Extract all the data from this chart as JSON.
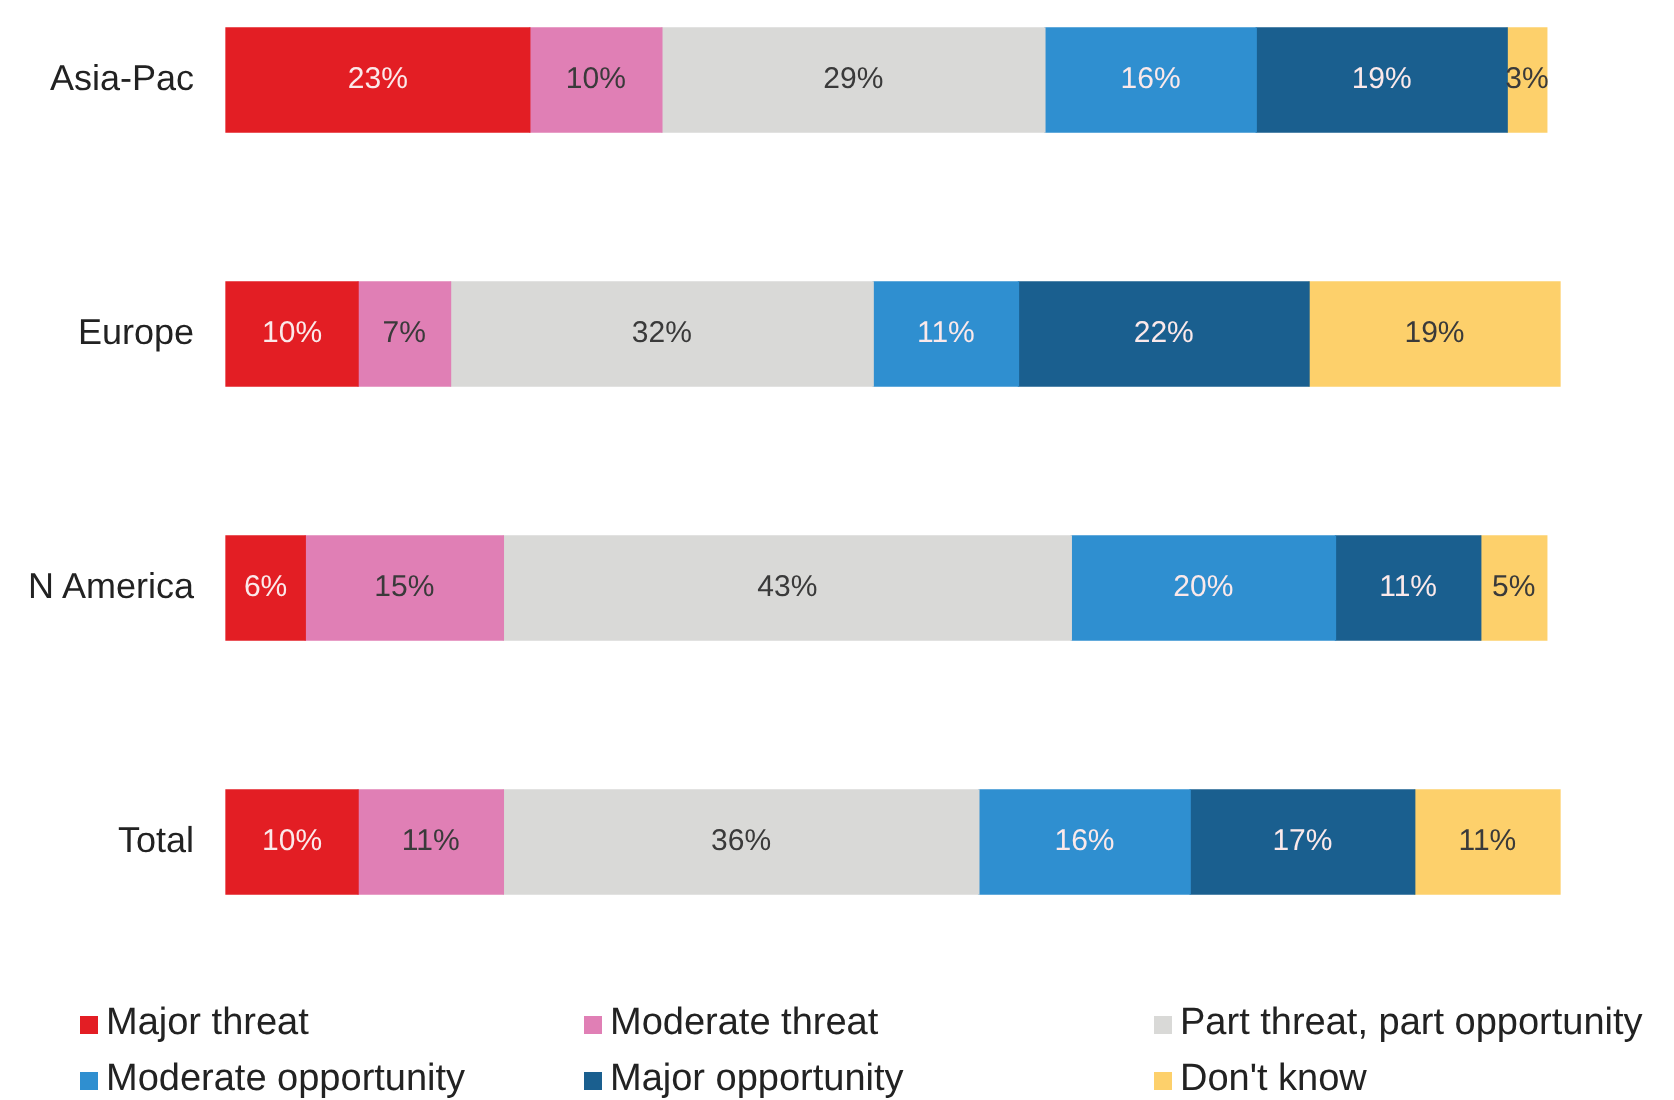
{
  "chart_data": {
    "type": "bar",
    "orientation": "horizontal",
    "stacked": true,
    "legend": "bottom",
    "categories": [
      "Asia-Pac",
      "Europe",
      "N America",
      "Total"
    ],
    "series": [
      {
        "name": "Major threat",
        "color": "#e31e24",
        "values": [
          23,
          10,
          6,
          10
        ],
        "value_labels": [
          "23%",
          "10%",
          "6%",
          "10%"
        ]
      },
      {
        "name": "Moderate threat",
        "color": "#e07fb5",
        "values": [
          10,
          7,
          15,
          11
        ],
        "value_labels": [
          "10%",
          "7%",
          "15%",
          "11%"
        ]
      },
      {
        "name": "Part threat, part opportunity",
        "color": "#d9d9d7",
        "values": [
          29,
          32,
          43,
          36
        ],
        "value_labels": [
          "29%",
          "32%",
          "43%",
          "36%"
        ]
      },
      {
        "name": "Moderate opportunity",
        "color": "#2f8fd0",
        "values": [
          16,
          11,
          20,
          16
        ],
        "value_labels": [
          "16%",
          "11%",
          "20%",
          "16%"
        ]
      },
      {
        "name": "Major opportunity",
        "color": "#1a5f8f",
        "values": [
          19,
          22,
          11,
          17
        ],
        "value_labels": [
          "19%",
          "22%",
          "11%",
          "17%"
        ]
      },
      {
        "name": "Don't know",
        "color": "#fdd06b",
        "values": [
          3,
          19,
          5,
          11
        ],
        "value_labels": [
          "3%",
          "19%",
          "5%",
          "11%"
        ]
      }
    ]
  }
}
